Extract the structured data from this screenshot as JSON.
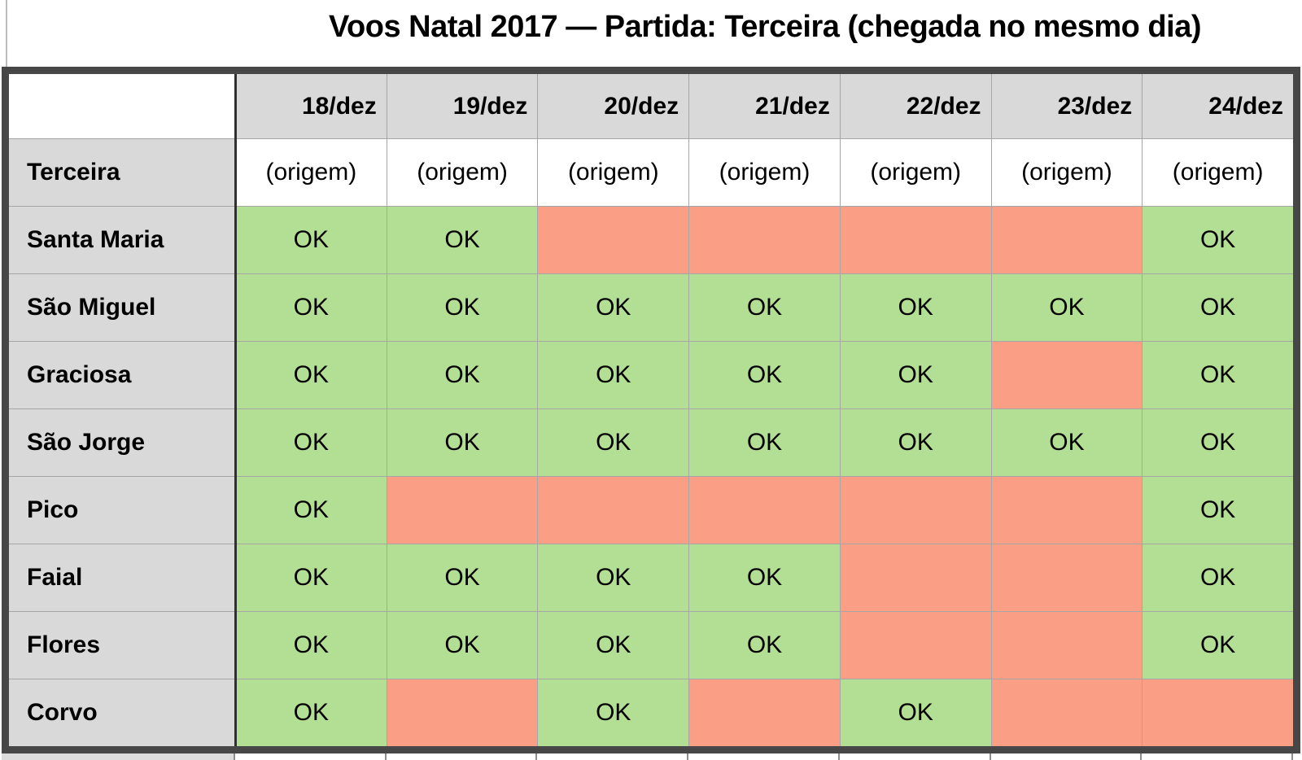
{
  "title": "Voos Natal 2017 — Partida: Terceira (chegada no mesmo dia)",
  "table": {
    "corner": "",
    "columns": [
      "18/dez",
      "19/dez",
      "20/dez",
      "21/dez",
      "22/dez",
      "23/dez",
      "24/dez"
    ],
    "rows": [
      {
        "label": "Terceira",
        "cells": [
          {
            "text": "(origem)",
            "status": "origin"
          },
          {
            "text": "(origem)",
            "status": "origin"
          },
          {
            "text": "(origem)",
            "status": "origin"
          },
          {
            "text": "(origem)",
            "status": "origin"
          },
          {
            "text": "(origem)",
            "status": "origin"
          },
          {
            "text": "(origem)",
            "status": "origin"
          },
          {
            "text": "(origem)",
            "status": "origin"
          }
        ]
      },
      {
        "label": "Santa Maria",
        "cells": [
          {
            "text": "OK",
            "status": "ok"
          },
          {
            "text": "OK",
            "status": "ok"
          },
          {
            "text": "",
            "status": "unavailable"
          },
          {
            "text": "",
            "status": "unavailable"
          },
          {
            "text": "",
            "status": "unavailable"
          },
          {
            "text": "",
            "status": "unavailable"
          },
          {
            "text": "OK",
            "status": "ok"
          }
        ]
      },
      {
        "label": "São Miguel",
        "cells": [
          {
            "text": "OK",
            "status": "ok"
          },
          {
            "text": "OK",
            "status": "ok"
          },
          {
            "text": "OK",
            "status": "ok"
          },
          {
            "text": "OK",
            "status": "ok"
          },
          {
            "text": "OK",
            "status": "ok"
          },
          {
            "text": "OK",
            "status": "ok"
          },
          {
            "text": "OK",
            "status": "ok"
          }
        ]
      },
      {
        "label": "Graciosa",
        "cells": [
          {
            "text": "OK",
            "status": "ok"
          },
          {
            "text": "OK",
            "status": "ok"
          },
          {
            "text": "OK",
            "status": "ok"
          },
          {
            "text": "OK",
            "status": "ok"
          },
          {
            "text": "OK",
            "status": "ok"
          },
          {
            "text": "",
            "status": "unavailable"
          },
          {
            "text": "OK",
            "status": "ok"
          }
        ]
      },
      {
        "label": "São Jorge",
        "cells": [
          {
            "text": "OK",
            "status": "ok"
          },
          {
            "text": "OK",
            "status": "ok"
          },
          {
            "text": "OK",
            "status": "ok"
          },
          {
            "text": "OK",
            "status": "ok"
          },
          {
            "text": "OK",
            "status": "ok"
          },
          {
            "text": "OK",
            "status": "ok"
          },
          {
            "text": "OK",
            "status": "ok"
          }
        ]
      },
      {
        "label": "Pico",
        "cells": [
          {
            "text": "OK",
            "status": "ok"
          },
          {
            "text": "",
            "status": "unavailable"
          },
          {
            "text": "",
            "status": "unavailable"
          },
          {
            "text": "",
            "status": "unavailable"
          },
          {
            "text": "",
            "status": "unavailable"
          },
          {
            "text": "",
            "status": "unavailable"
          },
          {
            "text": "OK",
            "status": "ok"
          }
        ]
      },
      {
        "label": "Faial",
        "cells": [
          {
            "text": "OK",
            "status": "ok"
          },
          {
            "text": "OK",
            "status": "ok"
          },
          {
            "text": "OK",
            "status": "ok"
          },
          {
            "text": "OK",
            "status": "ok"
          },
          {
            "text": "",
            "status": "unavailable"
          },
          {
            "text": "",
            "status": "unavailable"
          },
          {
            "text": "OK",
            "status": "ok"
          }
        ]
      },
      {
        "label": "Flores",
        "cells": [
          {
            "text": "OK",
            "status": "ok"
          },
          {
            "text": "OK",
            "status": "ok"
          },
          {
            "text": "OK",
            "status": "ok"
          },
          {
            "text": "OK",
            "status": "ok"
          },
          {
            "text": "",
            "status": "unavailable"
          },
          {
            "text": "",
            "status": "unavailable"
          },
          {
            "text": "OK",
            "status": "ok"
          }
        ]
      },
      {
        "label": "Corvo",
        "cells": [
          {
            "text": "OK",
            "status": "ok"
          },
          {
            "text": "",
            "status": "unavailable"
          },
          {
            "text": "OK",
            "status": "ok"
          },
          {
            "text": "",
            "status": "unavailable"
          },
          {
            "text": "OK",
            "status": "ok"
          },
          {
            "text": "",
            "status": "unavailable"
          },
          {
            "text": "",
            "status": "unavailable"
          }
        ]
      }
    ]
  },
  "colors": {
    "ok_bg": "#b2df94",
    "unavailable_bg": "#fb9e86",
    "origin_bg": "#ffffff",
    "header_bg": "#d9d9d9",
    "label_bg": "#d9d9d9",
    "frame_border": "#474747",
    "gridline": "#a6a6a6"
  }
}
